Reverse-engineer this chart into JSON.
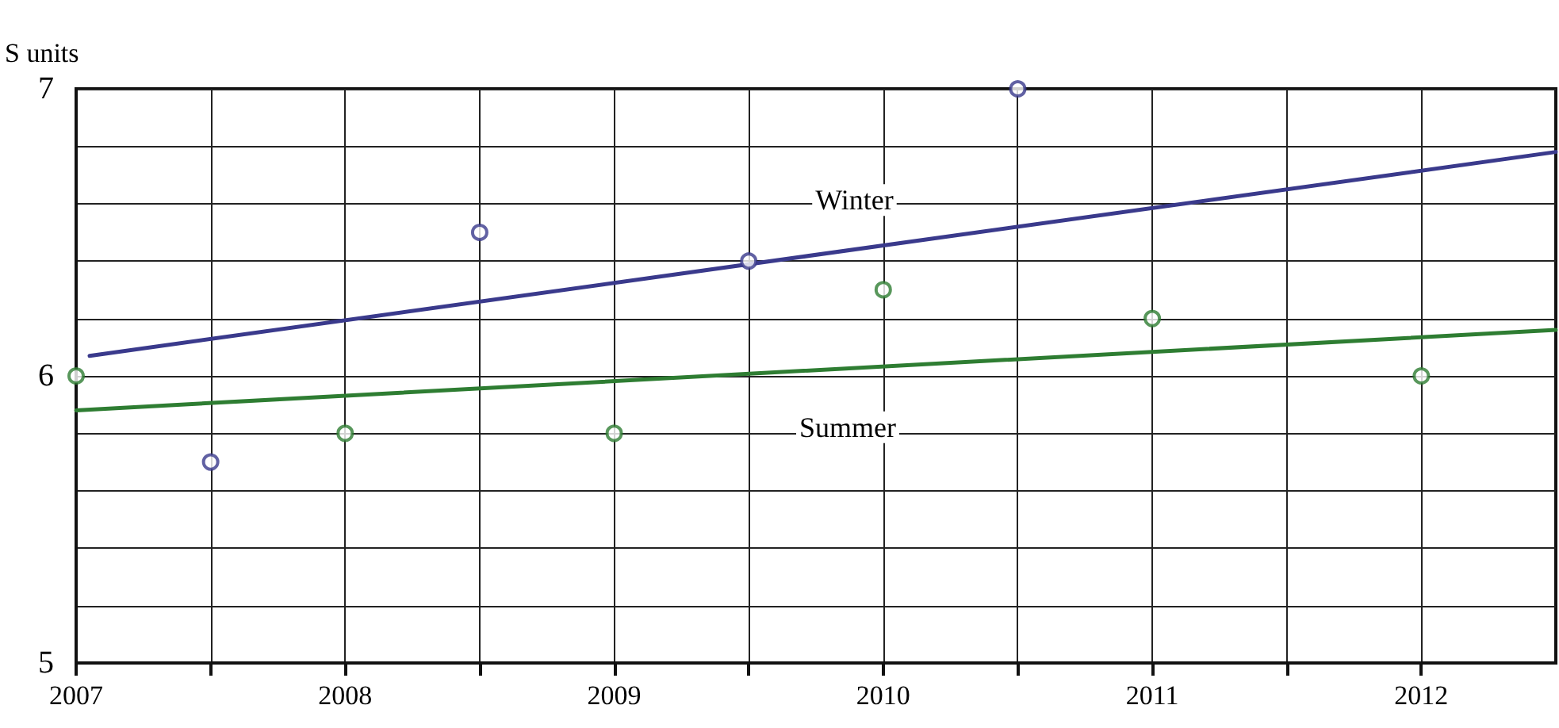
{
  "chart_data": {
    "type": "scatter",
    "ylabel": "S units",
    "xlim": [
      2007,
      2012.5
    ],
    "xticks": [
      2007,
      {
        "value": 2007.5,
        "label": null
      },
      2008,
      {
        "value": 2008.5,
        "label": null
      },
      2009,
      {
        "value": 2009.5,
        "label": null
      },
      2010,
      {
        "value": 2010.5,
        "label": null
      },
      2011,
      {
        "value": 2011.5,
        "label": null
      },
      2012
    ],
    "ylim": [
      5,
      7
    ],
    "yticks": [
      5,
      {
        "value": 5.2,
        "label": null
      },
      {
        "value": 5.4,
        "label": null
      },
      {
        "value": 5.6,
        "label": null
      },
      {
        "value": 5.8,
        "label": null
      },
      6,
      {
        "value": 6.2,
        "label": null
      },
      {
        "value": 6.4,
        "label": null
      },
      {
        "value": 6.6,
        "label": null
      },
      {
        "value": 6.8,
        "label": null
      },
      7
    ],
    "grid": true,
    "marker": "circle",
    "series": [
      {
        "name": "Winter",
        "type": "line",
        "marker": "none",
        "color": "#3a3a8c",
        "x": [
          2007.05,
          2012.5
        ],
        "values": [
          6.07,
          6.78
        ]
      },
      {
        "name": "Summer",
        "type": "line",
        "marker": "none",
        "color": "#2e7d32",
        "x": [
          2007,
          2012.5
        ],
        "values": [
          5.88,
          6.16
        ]
      },
      {
        "color": "#3a3a8c",
        "x": [
          2007.5,
          2008.5,
          2009.5,
          2010.5
        ],
        "values": [
          5.7,
          6.5,
          6.4,
          7.0
        ]
      },
      {
        "color": "#2e7d32",
        "x": [
          2007,
          2008,
          2009,
          2010,
          2011,
          2012
        ],
        "values": [
          6.0,
          5.8,
          5.8,
          6.3,
          6.2,
          6.0
        ]
      }
    ]
  }
}
